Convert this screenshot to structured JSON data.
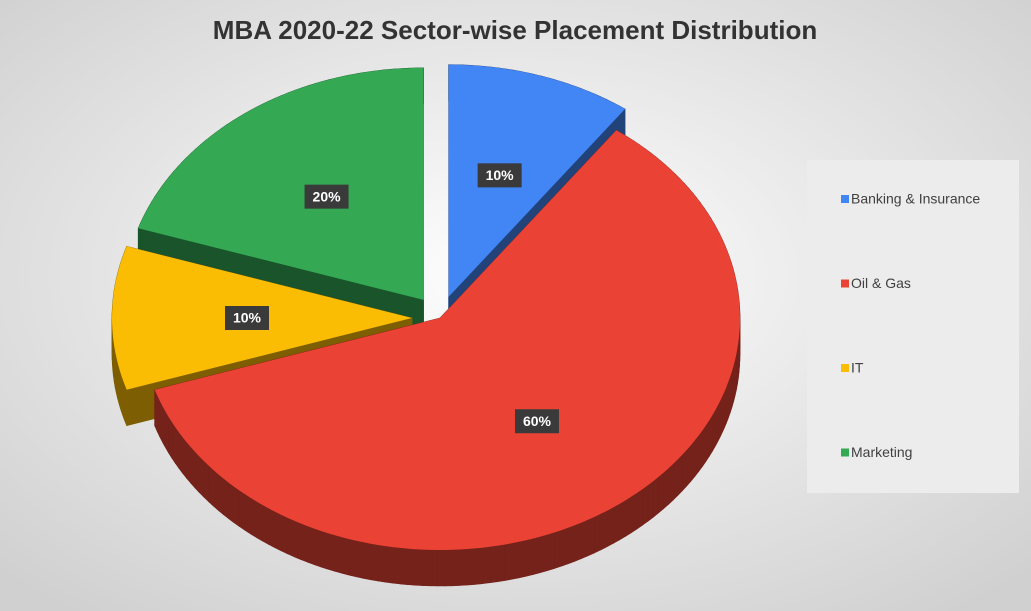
{
  "chart_data": {
    "type": "pie",
    "title": "MBA 2020-22  Sector-wise Placement Distribution",
    "categories": [
      "Banking & Insurance",
      "Oil & Gas",
      "IT",
      "Marketing"
    ],
    "values": [
      10,
      60,
      10,
      20
    ],
    "value_labels": [
      "10%",
      "60%",
      "10%",
      "20%"
    ],
    "colors": [
      "#4285f4",
      "#ea4335",
      "#fbbc04",
      "#34a853"
    ],
    "legend": "right"
  }
}
